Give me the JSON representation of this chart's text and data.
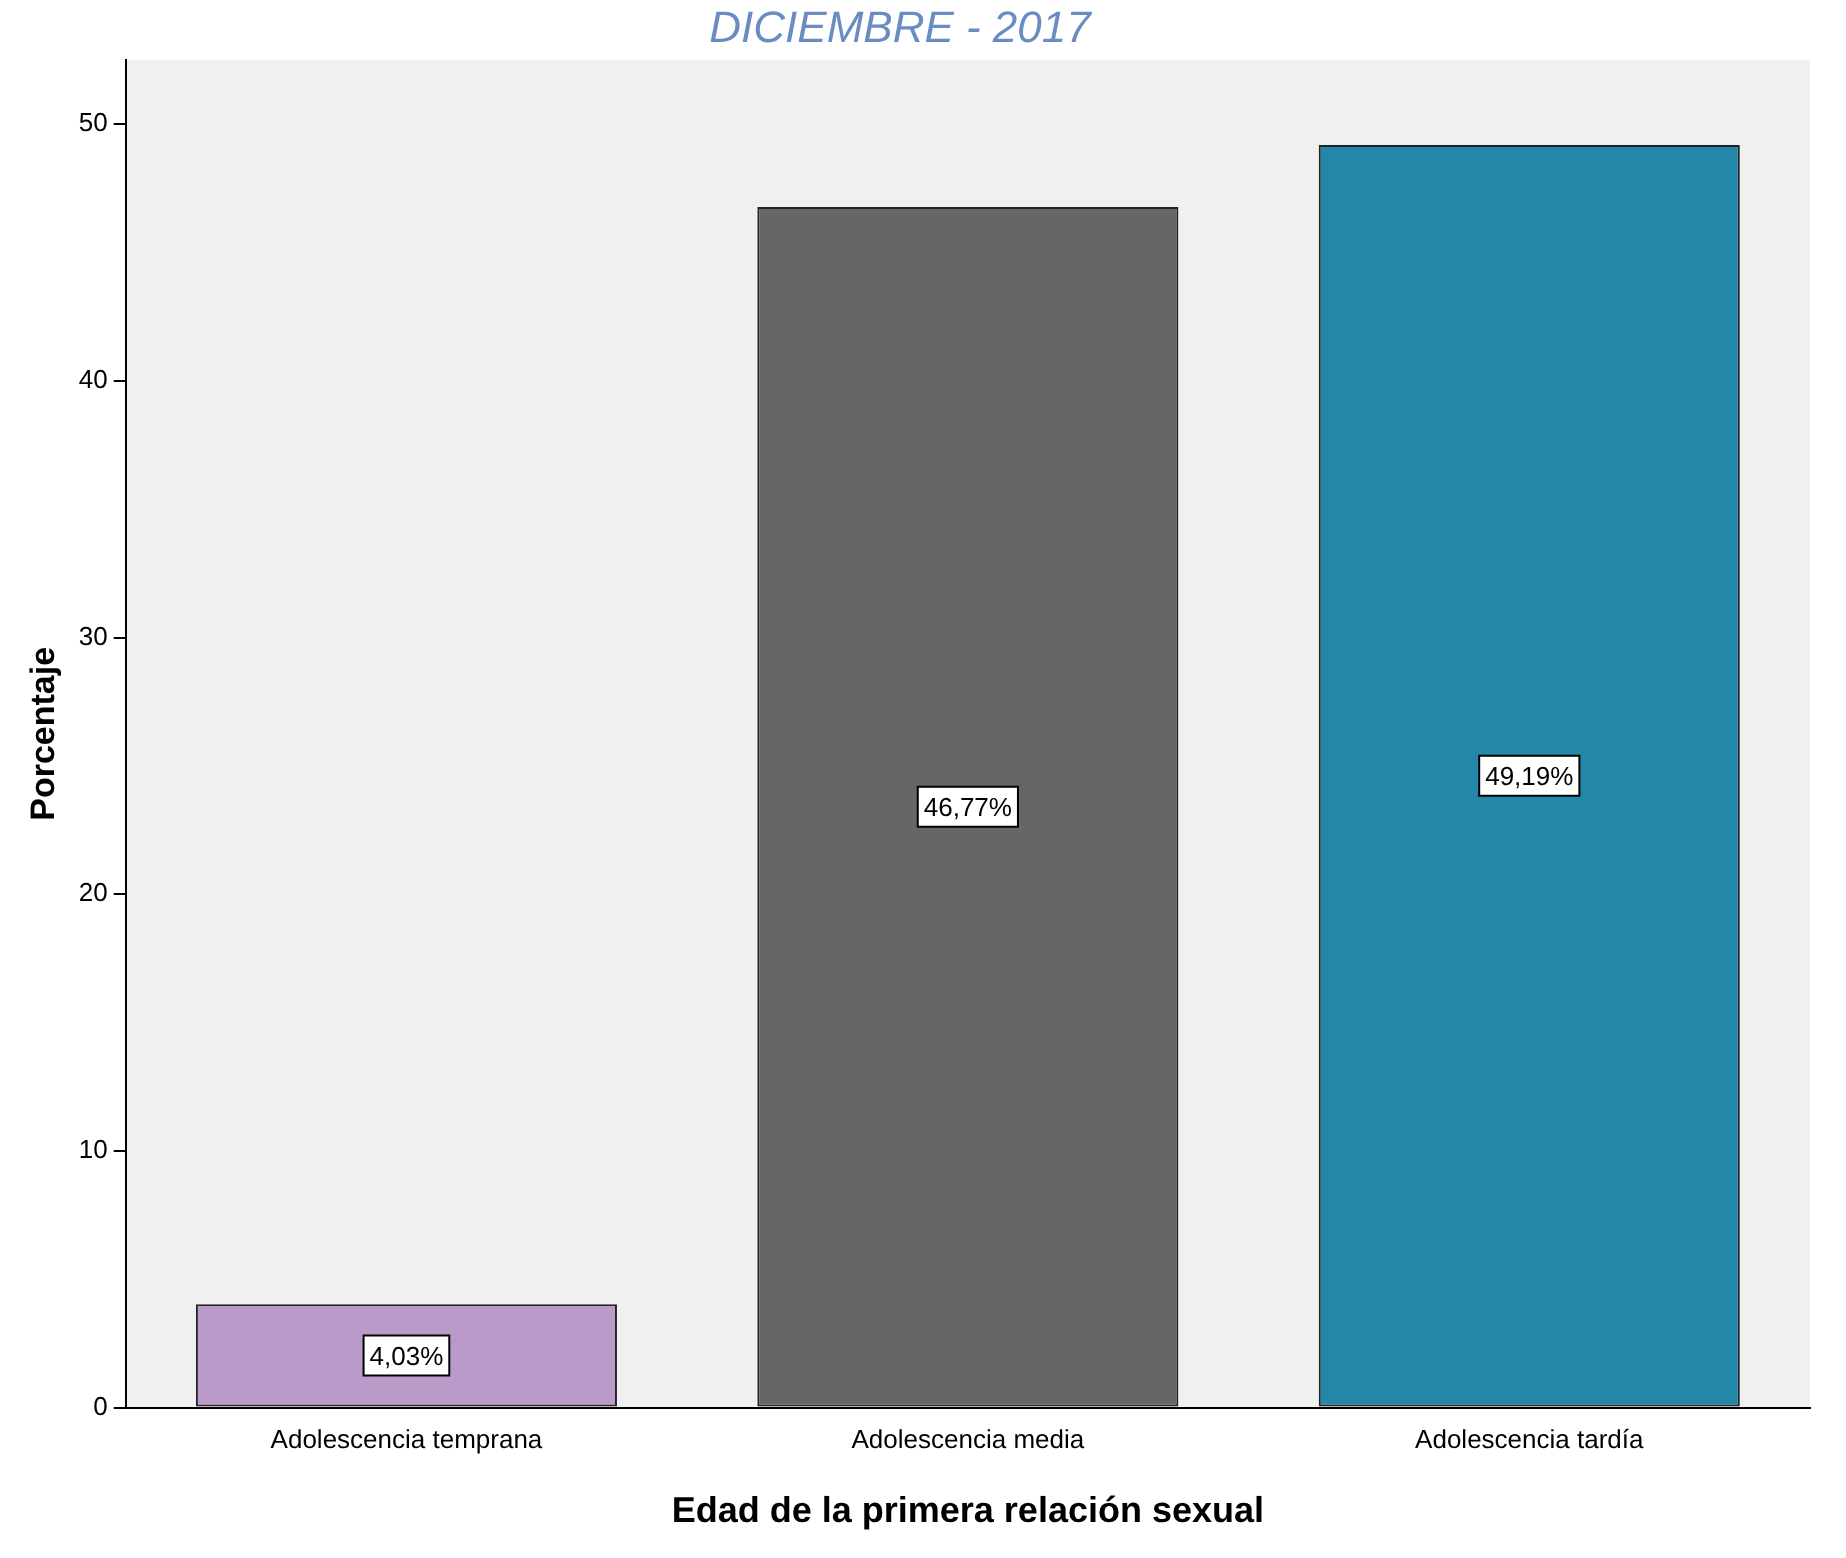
{
  "chart_data": {
    "type": "bar",
    "xlabel": "Edad de la primera relación sexual",
    "ylabel": "Porcentaje",
    "categories": [
      "Adolescencia temprana",
      "Adolescencia media",
      "Adolescencia tardía"
    ],
    "values": [
      4.03,
      46.77,
      49.19
    ],
    "colors": [
      "#b99ac9",
      "#666666",
      "#2387a9"
    ],
    "value_labels": [
      "4,03%",
      "46,77%",
      "49,19%"
    ],
    "ylim": [
      0,
      52.5
    ],
    "yticks": [
      0,
      10,
      20,
      30,
      40,
      50
    ],
    "grid": false,
    "legend": false,
    "annotations": [
      "DICIEMBRE - 2017"
    ]
  }
}
